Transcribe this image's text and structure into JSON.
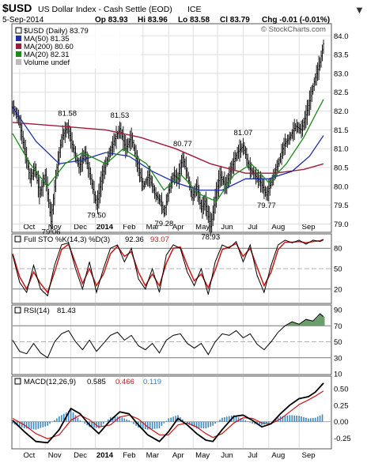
{
  "header": {
    "symbol": "$USD",
    "description": "US Dollar Index - Cash Settle (EOD)",
    "exchange": "ICE",
    "date": "5-Sep-2014",
    "quote": {
      "open": "Op 83.93",
      "high": "Hi 83.96",
      "low": "Lo 83.58",
      "close": "Cl 83.79",
      "change": "Chg -0.01 (-0.01%)"
    },
    "change_arrow": "▼",
    "copyright": "© StockCharts.com"
  },
  "colors": {
    "price": "#000000",
    "ma50": "#1f2fa8",
    "ma200": "#a01a3a",
    "ma20": "#1b8a1b",
    "stoK": "#000000",
    "stoD": "#d21414",
    "rsi": "#000000",
    "rsi_fill": "#6a9e6a",
    "macd": "#000000",
    "signal": "#d21414",
    "histogram": "#3a86c8",
    "ref_line": "#777777",
    "grid": "#dddddd"
  },
  "chart_data": [
    {
      "type": "line",
      "panel": "price",
      "legend": {
        "price": "$USD (Daily) 83.79",
        "ma50": "MA(50) 81.35",
        "ma200": "MA(200) 80.60",
        "ma20": "MA(20) 82.31",
        "volume": "Volume undef"
      },
      "months": [
        "Oct",
        "Nov",
        "Dec",
        "2014",
        "Feb",
        "Mar",
        "Apr",
        "May",
        "Jun",
        "Jul",
        "Aug",
        "Sep"
      ],
      "ylim": [
        78.8,
        84.3
      ],
      "yticks": [
        "84.0",
        "83.5",
        "83.0",
        "82.5",
        "82.0",
        "81.5",
        "81.0",
        "80.5",
        "80.0",
        "79.5",
        "79.0"
      ],
      "price_path": [
        [
          0,
          82.1
        ],
        [
          5,
          81.8
        ],
        [
          10,
          81.0
        ],
        [
          15,
          80.2
        ],
        [
          19,
          80.5
        ],
        [
          23,
          79.8
        ],
        [
          28,
          80.3
        ],
        [
          33,
          79.06
        ],
        [
          37,
          80.3
        ],
        [
          42,
          81.3
        ],
        [
          47,
          81.58
        ],
        [
          52,
          81.0
        ],
        [
          57,
          80.5
        ],
        [
          62,
          80.9
        ],
        [
          67,
          80.2
        ],
        [
          72,
          79.5
        ],
        [
          77,
          80.3
        ],
        [
          82,
          80.8
        ],
        [
          87,
          81.2
        ],
        [
          92,
          81.53
        ],
        [
          97,
          81.0
        ],
        [
          102,
          81.3
        ],
        [
          107,
          80.6
        ],
        [
          112,
          80.0
        ],
        [
          117,
          80.3
        ],
        [
          122,
          79.8
        ],
        [
          127,
          79.6
        ],
        [
          130,
          79.28
        ],
        [
          134,
          79.9
        ],
        [
          138,
          80.3
        ],
        [
          142,
          80.2
        ],
        [
          146,
          80.77
        ],
        [
          150,
          80.3
        ],
        [
          154,
          79.7
        ],
        [
          158,
          80.0
        ],
        [
          162,
          79.4
        ],
        [
          165,
          79.6
        ],
        [
          170,
          78.93
        ],
        [
          174,
          79.7
        ],
        [
          178,
          80.3
        ],
        [
          183,
          80.0
        ],
        [
          188,
          80.5
        ],
        [
          193,
          80.9
        ],
        [
          198,
          81.07
        ],
        [
          203,
          80.5
        ],
        [
          208,
          80.3
        ],
        [
          213,
          80.1
        ],
        [
          218,
          79.77
        ],
        [
          223,
          80.2
        ],
        [
          228,
          80.6
        ],
        [
          233,
          81.1
        ],
        [
          238,
          81.3
        ],
        [
          243,
          81.6
        ],
        [
          248,
          81.5
        ],
        [
          252,
          81.9
        ],
        [
          256,
          82.4
        ],
        [
          260,
          82.9
        ],
        [
          264,
          83.3
        ],
        [
          267,
          83.79
        ]
      ],
      "bar_range_note": "daily OHLC bars approximated around price path",
      "price_labels": [
        {
          "i": 33,
          "v": 79.06,
          "text": "79.06"
        },
        {
          "i": 47,
          "v": 81.58,
          "text": "81.58"
        },
        {
          "i": 72,
          "v": 79.5,
          "text": "79.50"
        },
        {
          "i": 92,
          "v": 81.53,
          "text": "81.53"
        },
        {
          "i": 130,
          "v": 79.28,
          "text": "79.28"
        },
        {
          "i": 146,
          "v": 80.77,
          "text": "80.77"
        },
        {
          "i": 170,
          "v": 78.93,
          "text": "78.93"
        },
        {
          "i": 198,
          "v": 81.07,
          "text": "81.07"
        },
        {
          "i": 218,
          "v": 79.77,
          "text": "79.77"
        }
      ],
      "ma200_path": [
        [
          0,
          81.7
        ],
        [
          40,
          81.6
        ],
        [
          80,
          81.5
        ],
        [
          110,
          81.3
        ],
        [
          140,
          81.0
        ],
        [
          170,
          80.6
        ],
        [
          200,
          80.35
        ],
        [
          225,
          80.35
        ],
        [
          250,
          80.45
        ],
        [
          267,
          80.6
        ]
      ],
      "ma50_path": [
        [
          0,
          82.1
        ],
        [
          20,
          81.2
        ],
        [
          40,
          80.6
        ],
        [
          60,
          80.7
        ],
        [
          80,
          80.9
        ],
        [
          100,
          80.8
        ],
        [
          120,
          80.4
        ],
        [
          140,
          80.1
        ],
        [
          160,
          79.9
        ],
        [
          180,
          79.9
        ],
        [
          200,
          80.2
        ],
        [
          220,
          80.2
        ],
        [
          240,
          80.4
        ],
        [
          255,
          80.8
        ],
        [
          267,
          81.35
        ]
      ],
      "ma20_path": [
        [
          0,
          81.4
        ],
        [
          15,
          80.6
        ],
        [
          30,
          80.0
        ],
        [
          45,
          80.6
        ],
        [
          60,
          80.9
        ],
        [
          80,
          80.6
        ],
        [
          95,
          81.0
        ],
        [
          115,
          80.6
        ],
        [
          130,
          79.9
        ],
        [
          145,
          80.3
        ],
        [
          160,
          79.8
        ],
        [
          175,
          79.6
        ],
        [
          190,
          80.3
        ],
        [
          205,
          80.6
        ],
        [
          220,
          80.1
        ],
        [
          235,
          80.6
        ],
        [
          250,
          81.3
        ],
        [
          260,
          81.9
        ],
        [
          267,
          82.31
        ]
      ]
    },
    {
      "type": "line",
      "panel": "stochastic",
      "legend": {
        "label": "Full STO %K(14,3) %D(3)",
        "k_value": "92.36",
        "d_value": "93.07"
      },
      "ylim": [
        0,
        100
      ],
      "yticks": [
        "80",
        "50",
        "20"
      ],
      "k_path": [
        [
          0,
          70
        ],
        [
          6,
          30
        ],
        [
          12,
          15
        ],
        [
          18,
          55
        ],
        [
          24,
          20
        ],
        [
          30,
          10
        ],
        [
          36,
          55
        ],
        [
          42,
          85
        ],
        [
          48,
          88
        ],
        [
          54,
          50
        ],
        [
          60,
          20
        ],
        [
          66,
          60
        ],
        [
          72,
          15
        ],
        [
          78,
          50
        ],
        [
          84,
          80
        ],
        [
          90,
          85
        ],
        [
          96,
          60
        ],
        [
          102,
          80
        ],
        [
          108,
          35
        ],
        [
          114,
          20
        ],
        [
          120,
          50
        ],
        [
          126,
          15
        ],
        [
          132,
          70
        ],
        [
          138,
          85
        ],
        [
          144,
          80
        ],
        [
          150,
          45
        ],
        [
          156,
          25
        ],
        [
          162,
          50
        ],
        [
          168,
          12
        ],
        [
          174,
          60
        ],
        [
          180,
          85
        ],
        [
          186,
          80
        ],
        [
          192,
          90
        ],
        [
          198,
          60
        ],
        [
          204,
          85
        ],
        [
          210,
          40
        ],
        [
          216,
          15
        ],
        [
          222,
          55
        ],
        [
          228,
          85
        ],
        [
          234,
          92
        ],
        [
          240,
          88
        ],
        [
          246,
          92
        ],
        [
          252,
          86
        ],
        [
          258,
          92
        ],
        [
          264,
          90
        ],
        [
          267,
          92.36
        ]
      ],
      "d_path": [
        [
          0,
          72
        ],
        [
          6,
          38
        ],
        [
          12,
          20
        ],
        [
          18,
          45
        ],
        [
          24,
          28
        ],
        [
          30,
          15
        ],
        [
          36,
          45
        ],
        [
          42,
          78
        ],
        [
          48,
          86
        ],
        [
          54,
          58
        ],
        [
          60,
          28
        ],
        [
          66,
          50
        ],
        [
          72,
          25
        ],
        [
          78,
          42
        ],
        [
          84,
          72
        ],
        [
          90,
          83
        ],
        [
          96,
          68
        ],
        [
          102,
          75
        ],
        [
          108,
          45
        ],
        [
          114,
          25
        ],
        [
          120,
          42
        ],
        [
          126,
          25
        ],
        [
          132,
          58
        ],
        [
          138,
          80
        ],
        [
          144,
          82
        ],
        [
          150,
          55
        ],
        [
          156,
          32
        ],
        [
          162,
          42
        ],
        [
          168,
          22
        ],
        [
          174,
          48
        ],
        [
          180,
          78
        ],
        [
          186,
          82
        ],
        [
          192,
          87
        ],
        [
          198,
          68
        ],
        [
          204,
          80
        ],
        [
          210,
          52
        ],
        [
          216,
          25
        ],
        [
          222,
          45
        ],
        [
          228,
          78
        ],
        [
          234,
          89
        ],
        [
          240,
          89
        ],
        [
          246,
          90
        ],
        [
          252,
          88
        ],
        [
          258,
          90
        ],
        [
          264,
          91
        ],
        [
          267,
          93.07
        ]
      ]
    },
    {
      "type": "line",
      "panel": "rsi",
      "legend": {
        "label": "RSI(14)",
        "value": "81.43"
      },
      "ylim": [
        10,
        95
      ],
      "yticks": [
        "90",
        "70",
        "50",
        "30",
        "10"
      ],
      "rsi_path": [
        [
          0,
          52
        ],
        [
          6,
          38
        ],
        [
          12,
          35
        ],
        [
          18,
          48
        ],
        [
          24,
          36
        ],
        [
          30,
          30
        ],
        [
          36,
          50
        ],
        [
          42,
          60
        ],
        [
          48,
          64
        ],
        [
          54,
          50
        ],
        [
          60,
          40
        ],
        [
          66,
          52
        ],
        [
          72,
          38
        ],
        [
          78,
          48
        ],
        [
          84,
          58
        ],
        [
          90,
          62
        ],
        [
          96,
          52
        ],
        [
          102,
          58
        ],
        [
          108,
          45
        ],
        [
          114,
          40
        ],
        [
          120,
          48
        ],
        [
          126,
          36
        ],
        [
          132,
          52
        ],
        [
          138,
          58
        ],
        [
          144,
          60
        ],
        [
          150,
          48
        ],
        [
          156,
          42
        ],
        [
          162,
          48
        ],
        [
          168,
          34
        ],
        [
          174,
          50
        ],
        [
          180,
          60
        ],
        [
          186,
          58
        ],
        [
          192,
          64
        ],
        [
          198,
          55
        ],
        [
          204,
          60
        ],
        [
          210,
          47
        ],
        [
          216,
          40
        ],
        [
          222,
          50
        ],
        [
          228,
          62
        ],
        [
          234,
          70
        ],
        [
          240,
          75
        ],
        [
          246,
          72
        ],
        [
          252,
          78
        ],
        [
          258,
          76
        ],
        [
          264,
          85
        ],
        [
          267,
          81.43
        ]
      ]
    },
    {
      "type": "line",
      "panel": "macd",
      "legend": {
        "label": "MACD(12,26,9)",
        "macd": "0.585",
        "signal": "0.466",
        "histogram": "0.119"
      },
      "ylim": [
        -0.4,
        0.68
      ],
      "yticks": [
        "0.50",
        "0.25",
        "0.00",
        "-0.25"
      ],
      "macd_path": [
        [
          0,
          0.02
        ],
        [
          10,
          -0.15
        ],
        [
          20,
          -0.3
        ],
        [
          30,
          -0.32
        ],
        [
          40,
          -0.12
        ],
        [
          50,
          0.2
        ],
        [
          58,
          0.12
        ],
        [
          66,
          -0.05
        ],
        [
          74,
          -0.18
        ],
        [
          84,
          0.02
        ],
        [
          92,
          0.15
        ],
        [
          100,
          0.12
        ],
        [
          108,
          -0.05
        ],
        [
          116,
          -0.2
        ],
        [
          126,
          -0.3
        ],
        [
          134,
          -0.15
        ],
        [
          142,
          0.05
        ],
        [
          150,
          -0.05
        ],
        [
          158,
          -0.18
        ],
        [
          166,
          -0.28
        ],
        [
          172,
          -0.3
        ],
        [
          180,
          -0.12
        ],
        [
          190,
          0.08
        ],
        [
          198,
          0.1
        ],
        [
          206,
          0.02
        ],
        [
          214,
          -0.08
        ],
        [
          222,
          -0.03
        ],
        [
          230,
          0.12
        ],
        [
          238,
          0.25
        ],
        [
          246,
          0.35
        ],
        [
          254,
          0.38
        ],
        [
          260,
          0.45
        ],
        [
          267,
          0.585
        ]
      ],
      "signal_path": [
        [
          0,
          0.05
        ],
        [
          10,
          -0.05
        ],
        [
          20,
          -0.18
        ],
        [
          30,
          -0.26
        ],
        [
          40,
          -0.2
        ],
        [
          50,
          0.02
        ],
        [
          58,
          0.1
        ],
        [
          66,
          0.03
        ],
        [
          74,
          -0.08
        ],
        [
          84,
          -0.05
        ],
        [
          92,
          0.07
        ],
        [
          100,
          0.1
        ],
        [
          108,
          0.04
        ],
        [
          116,
          -0.08
        ],
        [
          126,
          -0.2
        ],
        [
          134,
          -0.2
        ],
        [
          142,
          -0.05
        ],
        [
          150,
          -0.02
        ],
        [
          158,
          -0.08
        ],
        [
          166,
          -0.18
        ],
        [
          172,
          -0.24
        ],
        [
          180,
          -0.18
        ],
        [
          190,
          -0.02
        ],
        [
          198,
          0.06
        ],
        [
          206,
          0.05
        ],
        [
          214,
          -0.02
        ],
        [
          222,
          -0.03
        ],
        [
          230,
          0.04
        ],
        [
          238,
          0.15
        ],
        [
          246,
          0.26
        ],
        [
          254,
          0.33
        ],
        [
          260,
          0.39
        ],
        [
          267,
          0.466
        ]
      ]
    }
  ]
}
